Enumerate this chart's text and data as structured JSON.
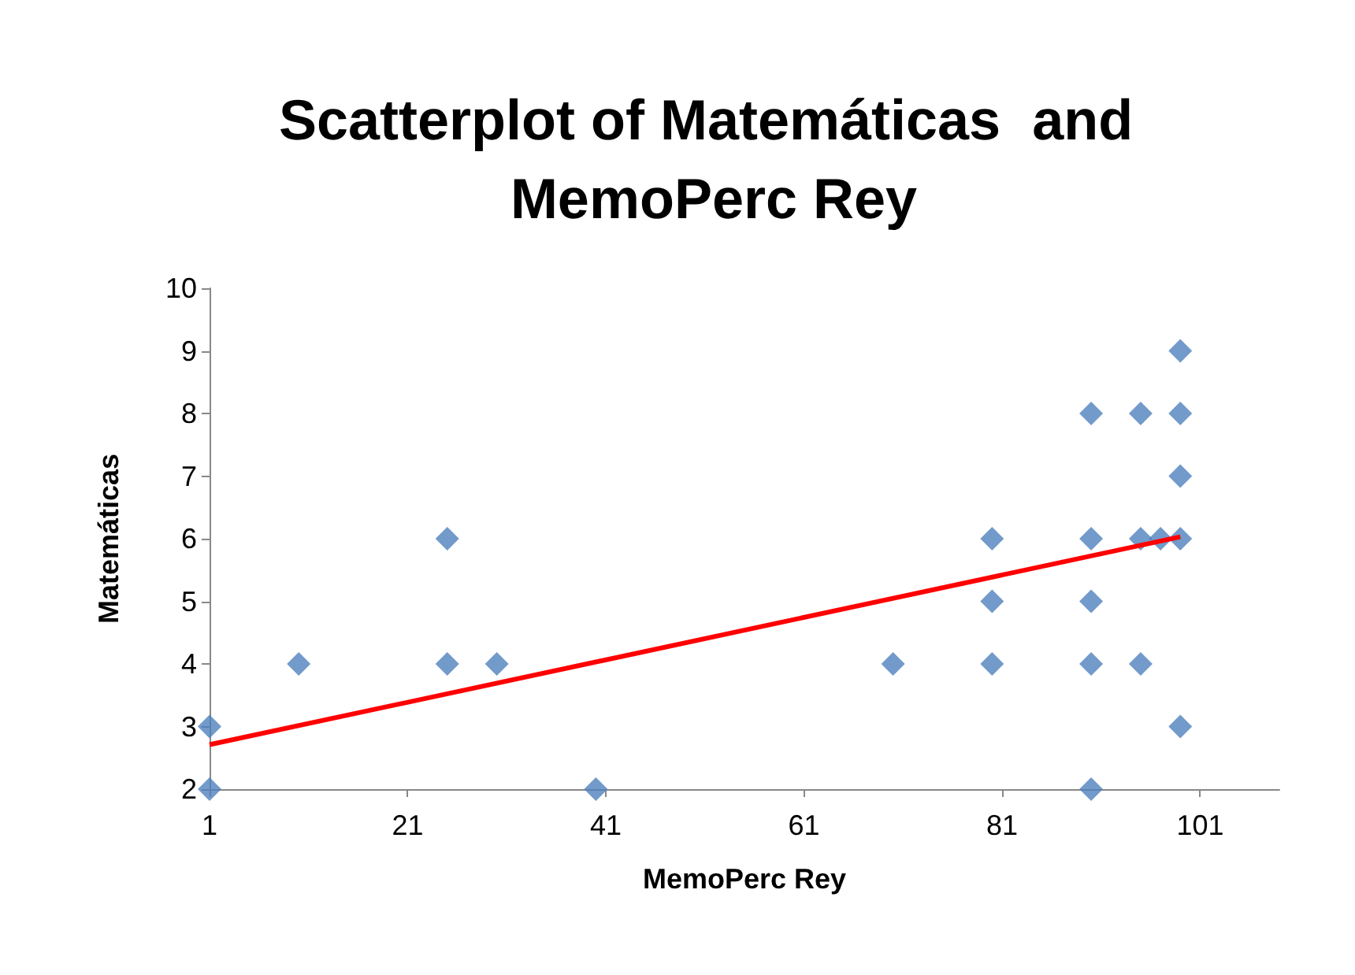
{
  "chart_data": {
    "type": "scatter",
    "title": "Scatterplot of Matemáticas  and MemoPerc Rey",
    "xlabel": "MemoPerc Rey",
    "ylabel": "Matemáticas",
    "xlim": [
      1,
      109
    ],
    "xticks": [
      1,
      21,
      41,
      61,
      81,
      101
    ],
    "ylim": [
      2,
      10
    ],
    "yticks": [
      2,
      3,
      4,
      5,
      6,
      7,
      8,
      9,
      10
    ],
    "grid": false,
    "marker": "diamond",
    "series": [
      {
        "color": "#4f81bd",
        "x": [
          1,
          1,
          10,
          25,
          25,
          30,
          40,
          70,
          80,
          80,
          80,
          90,
          90,
          90,
          90,
          90,
          95,
          95,
          95,
          97,
          99,
          99,
          99,
          99,
          99
        ],
        "values": [
          3,
          2,
          4,
          6,
          4,
          4,
          2,
          4,
          6,
          5,
          4,
          8,
          6,
          5,
          4,
          2,
          8,
          6,
          4,
          6,
          9,
          8,
          7,
          6,
          3
        ]
      },
      {
        "type": "line",
        "color": "#ff0000",
        "marker": "none",
        "x": [
          1,
          99
        ],
        "values": [
          2.71,
          6.03
        ]
      }
    ]
  }
}
